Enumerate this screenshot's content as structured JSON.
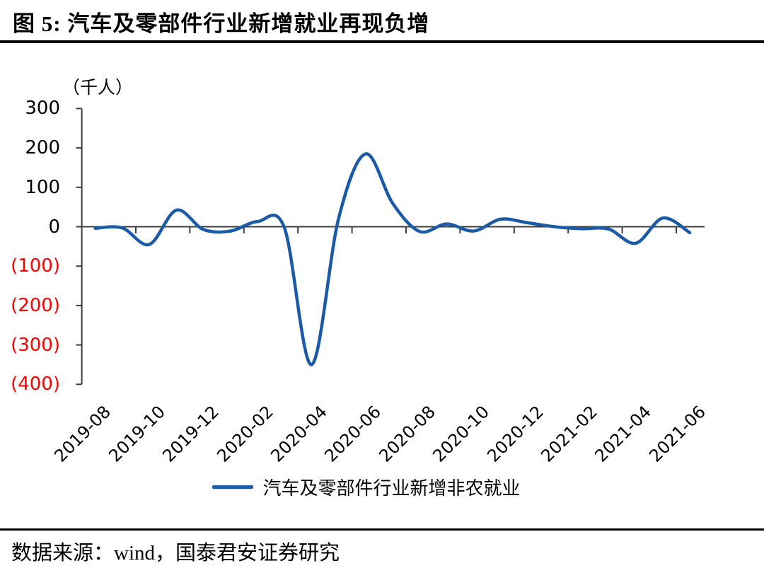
{
  "header": {
    "title": "图 5: 汽车及零部件行业新增就业再现负增"
  },
  "footer": {
    "source_text": "数据来源：wind，国泰君安证券研究"
  },
  "colors": {
    "line_blue": "#1a5aa6",
    "axis_gray": "#3d3d3d",
    "negative_tick_red": "#ff0000"
  },
  "chart_data": {
    "type": "line",
    "title": "图 5: 汽车及零部件行业新增就业再现负增",
    "unit_label": "（千人）",
    "xlabel": "",
    "ylabel": "千人",
    "ylim": [
      -400,
      300
    ],
    "y_tick_interval": 100,
    "grid": false,
    "legend_position": "bottom",
    "y_ticks": [
      {
        "label": "300",
        "value": 300,
        "negative": false
      },
      {
        "label": "200",
        "value": 200,
        "negative": false
      },
      {
        "label": "100",
        "value": 100,
        "negative": false
      },
      {
        "label": "0",
        "value": 0,
        "negative": false
      },
      {
        "label": "(100)",
        "value": -100,
        "negative": true
      },
      {
        "label": "(200)",
        "value": -200,
        "negative": true
      },
      {
        "label": "(300)",
        "value": -300,
        "negative": true
      },
      {
        "label": "(400)",
        "value": -400,
        "negative": true
      }
    ],
    "x_tick_labels": [
      "2019-08",
      "2019-10",
      "2019-12",
      "2020-02",
      "2020-04",
      "2020-06",
      "2020-08",
      "2020-10",
      "2020-12",
      "2021-02",
      "2021-04",
      "2021-06"
    ],
    "categories": [
      "2019-08",
      "2019-09",
      "2019-10",
      "2019-11",
      "2019-12",
      "2020-01",
      "2020-02",
      "2020-03",
      "2020-04",
      "2020-05",
      "2020-06",
      "2020-07",
      "2020-08",
      "2020-09",
      "2020-10",
      "2020-11",
      "2020-12",
      "2021-01",
      "2021-02",
      "2021-03",
      "2021-04",
      "2021-05",
      "2021-06"
    ],
    "series": [
      {
        "name": "汽车及零部件行业新增非农就业",
        "color": "#1a5aa6",
        "values": [
          -4,
          -3,
          -45,
          42,
          -7,
          -11,
          13,
          -3,
          -350,
          20,
          185,
          60,
          -12,
          7,
          -11,
          19,
          10,
          0,
          -5,
          -6,
          -42,
          22,
          -15
        ]
      }
    ]
  }
}
